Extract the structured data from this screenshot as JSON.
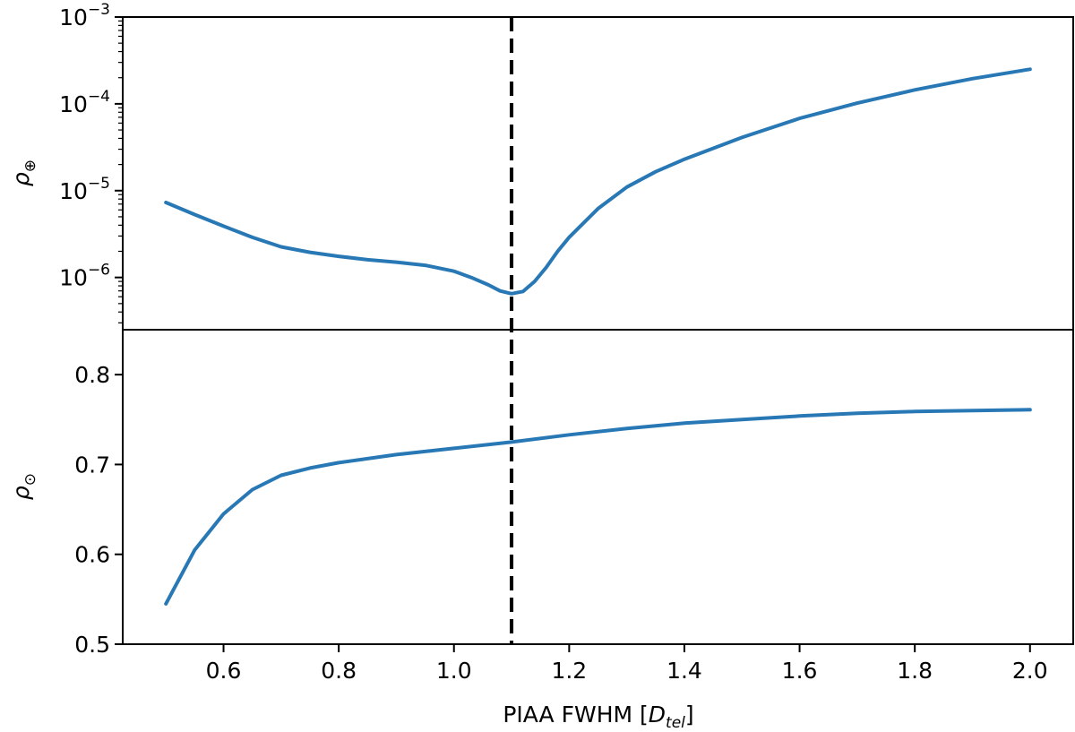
{
  "chart_data": [
    {
      "type": "line",
      "panel": "top",
      "yscale": "log",
      "ylabel_symbol": "ρ",
      "ylabel_sub": "⊕",
      "ylim": [
        2.5e-07,
        0.001
      ],
      "yticks": [
        {
          "value": 1e-06,
          "base": "10",
          "exp": "−6"
        },
        {
          "value": 1e-05,
          "base": "10",
          "exp": "−5"
        },
        {
          "value": 0.0001,
          "base": "10",
          "exp": "−4"
        },
        {
          "value": 0.001,
          "base": "10",
          "exp": "−3"
        }
      ],
      "series": [
        {
          "color": "#2878b5",
          "x": [
            0.5,
            0.55,
            0.6,
            0.65,
            0.7,
            0.75,
            0.8,
            0.85,
            0.9,
            0.95,
            1.0,
            1.03,
            1.06,
            1.08,
            1.1,
            1.12,
            1.14,
            1.16,
            1.18,
            1.2,
            1.25,
            1.3,
            1.35,
            1.4,
            1.5,
            1.6,
            1.7,
            1.8,
            1.9,
            2.0
          ],
          "y": [
            7.3e-06,
            5.3e-06,
            3.9e-06,
            2.9e-06,
            2.25e-06,
            1.95e-06,
            1.75e-06,
            1.6e-06,
            1.5e-06,
            1.38e-06,
            1.18e-06,
            1e-06,
            8.2e-07,
            7e-07,
            6.5e-07,
            6.9e-07,
            9e-07,
            1.3e-06,
            2e-06,
            2.9e-06,
            6.2e-06,
            1.1e-05,
            1.65e-05,
            2.3e-05,
            4.1e-05,
            6.8e-05,
            0.000102,
            0.000145,
            0.000195,
            0.00025
          ]
        }
      ],
      "vline": 1.1
    },
    {
      "type": "line",
      "panel": "bottom",
      "yscale": "linear",
      "ylabel_symbol": "ρ",
      "ylabel_sub": "⊙",
      "ylim": [
        0.5,
        0.85
      ],
      "yticks": [
        0.5,
        0.6,
        0.7,
        0.8
      ],
      "xlim": [
        0.425,
        2.075
      ],
      "xticks": [
        "0.6",
        "0.8",
        "1.0",
        "1.2",
        "1.4",
        "1.6",
        "1.8",
        "2.0"
      ],
      "xlabel": "PIAA FWHM",
      "xlabel_unit_symbol": "D",
      "xlabel_unit_sub": "tel",
      "series": [
        {
          "color": "#2878b5",
          "x": [
            0.5,
            0.55,
            0.6,
            0.65,
            0.7,
            0.75,
            0.8,
            0.9,
            1.0,
            1.1,
            1.2,
            1.3,
            1.4,
            1.5,
            1.6,
            1.7,
            1.8,
            1.9,
            2.0
          ],
          "y": [
            0.545,
            0.605,
            0.645,
            0.672,
            0.688,
            0.696,
            0.702,
            0.711,
            0.718,
            0.725,
            0.733,
            0.74,
            0.746,
            0.75,
            0.754,
            0.757,
            0.759,
            0.76,
            0.761
          ]
        }
      ],
      "vline": 1.1
    }
  ]
}
